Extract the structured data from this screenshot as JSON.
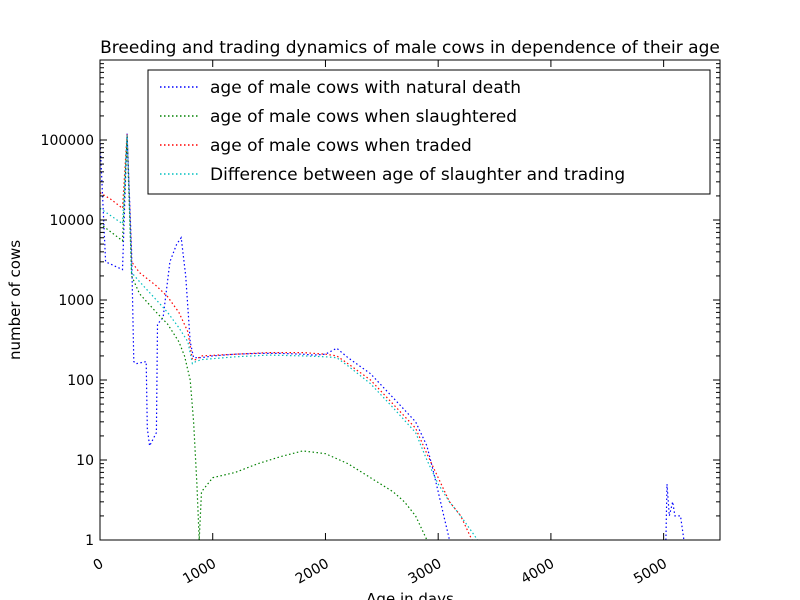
{
  "chart_data": {
    "type": "line",
    "title": "Breeding and trading dynamics of male cows in dependence of their age",
    "xlabel": "Age in days",
    "ylabel": "number of cows",
    "xlim": [
      0,
      5500
    ],
    "ylim": [
      1,
      1000000
    ],
    "yscale": "log",
    "grid": false,
    "legend_position": "top",
    "x_ticks": [
      0,
      1000,
      2000,
      3000,
      4000,
      5000
    ],
    "x_tick_labels": [
      "0",
      "1000",
      "2000",
      "3000",
      "4000",
      "5000"
    ],
    "y_ticks": [
      1,
      10,
      100,
      1000,
      10000,
      100000
    ],
    "y_tick_labels": [
      "1",
      "10",
      "100",
      "1000",
      "10000",
      "100000"
    ],
    "series": [
      {
        "name": "age of male cows with natural death",
        "color": "#0000ff",
        "points": [
          [
            0,
            100000
          ],
          [
            50,
            3000
          ],
          [
            200,
            2400
          ],
          [
            240,
            120000
          ],
          [
            280,
            4000
          ],
          [
            300,
            170
          ],
          [
            320,
            160
          ],
          [
            410,
            170
          ],
          [
            420,
            25
          ],
          [
            440,
            15
          ],
          [
            500,
            22
          ],
          [
            510,
            500
          ],
          [
            560,
            600
          ],
          [
            620,
            3000
          ],
          [
            680,
            5000
          ],
          [
            720,
            6000
          ],
          [
            760,
            2000
          ],
          [
            800,
            300
          ],
          [
            830,
            190
          ],
          [
            900,
            190
          ],
          [
            1000,
            200
          ],
          [
            1200,
            210
          ],
          [
            1400,
            215
          ],
          [
            1600,
            215
          ],
          [
            1800,
            210
          ],
          [
            1900,
            205
          ],
          [
            2000,
            210
          ],
          [
            2100,
            250
          ],
          [
            2200,
            190
          ],
          [
            2400,
            120
          ],
          [
            2600,
            60
          ],
          [
            2800,
            30
          ],
          [
            2900,
            15
          ],
          [
            2950,
            8
          ],
          [
            3000,
            4
          ],
          [
            3050,
            2
          ],
          [
            3100,
            1
          ]
        ]
      },
      {
        "name": "age of male cows when slaughtered",
        "color": "#008000",
        "points": [
          [
            0,
            9000
          ],
          [
            200,
            5500
          ],
          [
            240,
            110000
          ],
          [
            280,
            2000
          ],
          [
            350,
            1200
          ],
          [
            500,
            700
          ],
          [
            600,
            500
          ],
          [
            700,
            300
          ],
          [
            750,
            200
          ],
          [
            800,
            100
          ],
          [
            830,
            30
          ],
          [
            860,
            5
          ],
          [
            880,
            1
          ],
          [
            900,
            4
          ],
          [
            1000,
            6
          ],
          [
            1200,
            7
          ],
          [
            1400,
            9
          ],
          [
            1600,
            11
          ],
          [
            1800,
            13
          ],
          [
            2000,
            12
          ],
          [
            2200,
            9
          ],
          [
            2400,
            6
          ],
          [
            2600,
            4
          ],
          [
            2700,
            3
          ],
          [
            2800,
            2
          ],
          [
            2900,
            1
          ]
        ]
      },
      {
        "name": "age of male cows when traded",
        "color": "#ff0000",
        "points": [
          [
            0,
            22000
          ],
          [
            100,
            18000
          ],
          [
            200,
            14000
          ],
          [
            240,
            120000
          ],
          [
            280,
            3000
          ],
          [
            350,
            2200
          ],
          [
            500,
            1500
          ],
          [
            600,
            1100
          ],
          [
            700,
            700
          ],
          [
            780,
            400
          ],
          [
            820,
            180
          ],
          [
            850,
            180
          ],
          [
            900,
            200
          ],
          [
            1200,
            210
          ],
          [
            1500,
            220
          ],
          [
            1800,
            220
          ],
          [
            2000,
            210
          ],
          [
            2100,
            200
          ],
          [
            2200,
            160
          ],
          [
            2400,
            100
          ],
          [
            2600,
            50
          ],
          [
            2800,
            25
          ],
          [
            2900,
            12
          ],
          [
            3000,
            6
          ],
          [
            3100,
            3
          ],
          [
            3200,
            2
          ],
          [
            3300,
            1
          ]
        ]
      },
      {
        "name": "Difference between age of slaughter and trading",
        "color": "#00bfbf",
        "points": [
          [
            0,
            14000
          ],
          [
            200,
            9000
          ],
          [
            240,
            115000
          ],
          [
            280,
            2200
          ],
          [
            350,
            1700
          ],
          [
            500,
            1000
          ],
          [
            600,
            700
          ],
          [
            700,
            450
          ],
          [
            780,
            300
          ],
          [
            820,
            160
          ],
          [
            850,
            170
          ],
          [
            900,
            180
          ],
          [
            1200,
            195
          ],
          [
            1500,
            205
          ],
          [
            1800,
            200
          ],
          [
            2000,
            195
          ],
          [
            2100,
            190
          ],
          [
            2200,
            150
          ],
          [
            2400,
            90
          ],
          [
            2600,
            45
          ],
          [
            2800,
            22
          ],
          [
            2900,
            10
          ],
          [
            3000,
            5
          ],
          [
            3100,
            3
          ],
          [
            3200,
            2
          ],
          [
            3350,
            1
          ]
        ]
      },
      {
        "name": "",
        "color": "#0000ff",
        "points": [
          [
            5020,
            1
          ],
          [
            5030,
            5
          ],
          [
            5050,
            2
          ],
          [
            5080,
            3
          ],
          [
            5100,
            2
          ],
          [
            5150,
            2
          ],
          [
            5180,
            1
          ]
        ]
      }
    ]
  }
}
